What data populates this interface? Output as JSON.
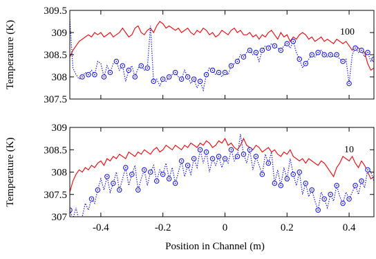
{
  "chart_data": [
    {
      "type": "line",
      "annotation": "100",
      "ylabel": "Temperature (K)",
      "xlim": [
        -0.5,
        0.48
      ],
      "ylim": [
        307.5,
        309.5
      ],
      "yticks": [
        "307.5",
        "308",
        "308.5",
        "309",
        "309.5"
      ],
      "ytick_values": [
        307.5,
        308,
        308.5,
        309,
        309.5
      ],
      "xticks": [
        "-0.4",
        "-0.2",
        "0",
        "0.2",
        "0.4"
      ],
      "xtick_values": [
        -0.4,
        -0.2,
        0,
        0.2,
        0.4
      ],
      "xtick_labels_shown": false,
      "colors": {
        "solid": "#e8141c",
        "dotted": "#1a1ad8"
      },
      "series": [
        {
          "style": "solid",
          "x": [
            -0.5,
            -0.49,
            -0.48,
            -0.47,
            -0.46,
            -0.45,
            -0.44,
            -0.43,
            -0.42,
            -0.41,
            -0.4,
            -0.39,
            -0.38,
            -0.37,
            -0.36,
            -0.35,
            -0.34,
            -0.33,
            -0.32,
            -0.31,
            -0.3,
            -0.29,
            -0.28,
            -0.27,
            -0.26,
            -0.25,
            -0.24,
            -0.23,
            -0.22,
            -0.21,
            -0.2,
            -0.19,
            -0.18,
            -0.17,
            -0.16,
            -0.15,
            -0.14,
            -0.13,
            -0.12,
            -0.11,
            -0.1,
            -0.09,
            -0.08,
            -0.07,
            -0.06,
            -0.05,
            -0.04,
            -0.03,
            -0.02,
            -0.01,
            0,
            0.01,
            0.02,
            0.03,
            0.04,
            0.05,
            0.06,
            0.07,
            0.08,
            0.09,
            0.1,
            0.11,
            0.12,
            0.13,
            0.14,
            0.15,
            0.16,
            0.17,
            0.18,
            0.19,
            0.2,
            0.21,
            0.22,
            0.23,
            0.24,
            0.25,
            0.26,
            0.27,
            0.28,
            0.29,
            0.3,
            0.31,
            0.32,
            0.33,
            0.34,
            0.35,
            0.36,
            0.37,
            0.38,
            0.39,
            0.4,
            0.41,
            0.42,
            0.43,
            0.44,
            0.45,
            0.46,
            0.47,
            0.48
          ],
          "y": [
            308.45,
            308.6,
            308.7,
            308.8,
            308.85,
            308.9,
            308.95,
            308.9,
            309.0,
            308.95,
            309.0,
            308.9,
            308.95,
            309.0,
            308.9,
            308.95,
            309.0,
            309.1,
            309.0,
            308.9,
            308.95,
            309.1,
            309.15,
            309.0,
            308.95,
            309.05,
            309.1,
            309.0,
            309.15,
            309.25,
            309.2,
            309.1,
            309.15,
            309.1,
            309.05,
            309.1,
            309.0,
            309.05,
            309.1,
            309.0,
            308.95,
            309.05,
            309.0,
            309.1,
            309.05,
            308.95,
            309.0,
            308.9,
            308.95,
            309.05,
            309.0,
            308.95,
            309.05,
            309.1,
            309.0,
            309.05,
            308.95,
            308.95,
            309.0,
            308.9,
            308.95,
            308.85,
            308.95,
            308.9,
            309.0,
            309.05,
            308.95,
            308.85,
            309.0,
            308.9,
            308.95,
            308.8,
            308.9,
            308.85,
            308.95,
            309.0,
            308.95,
            308.85,
            308.9,
            308.8,
            308.85,
            308.9,
            308.8,
            308.85,
            308.8,
            308.75,
            308.85,
            308.8,
            308.75,
            308.8,
            308.7,
            308.6,
            308.7,
            308.65,
            308.6,
            308.55,
            308.3,
            308.15,
            308.2
          ]
        },
        {
          "style": "dotted",
          "x": [
            -0.5,
            -0.49,
            -0.48,
            -0.47,
            -0.46,
            -0.45,
            -0.44,
            -0.43,
            -0.42,
            -0.41,
            -0.4,
            -0.39,
            -0.38,
            -0.37,
            -0.36,
            -0.35,
            -0.34,
            -0.33,
            -0.32,
            -0.31,
            -0.3,
            -0.29,
            -0.28,
            -0.27,
            -0.26,
            -0.25,
            -0.24,
            -0.23,
            -0.22,
            -0.21,
            -0.2,
            -0.19,
            -0.18,
            -0.17,
            -0.16,
            -0.15,
            -0.14,
            -0.13,
            -0.12,
            -0.11,
            -0.1,
            -0.09,
            -0.08,
            -0.07,
            -0.06,
            -0.05,
            -0.04,
            -0.03,
            -0.02,
            -0.01,
            0,
            0.01,
            0.02,
            0.03,
            0.04,
            0.05,
            0.06,
            0.07,
            0.08,
            0.09,
            0.1,
            0.11,
            0.12,
            0.13,
            0.14,
            0.15,
            0.16,
            0.17,
            0.18,
            0.19,
            0.2,
            0.21,
            0.22,
            0.23,
            0.24,
            0.25,
            0.26,
            0.27,
            0.28,
            0.29,
            0.3,
            0.31,
            0.32,
            0.33,
            0.34,
            0.35,
            0.36,
            0.37,
            0.38,
            0.39,
            0.4,
            0.41,
            0.42,
            0.43,
            0.44,
            0.45,
            0.46,
            0.47,
            0.48
          ],
          "y": [
            309.3,
            308.2,
            308.05,
            307.95,
            308.0,
            308.1,
            308.05,
            308.15,
            308.05,
            308.35,
            308.3,
            308.0,
            308.25,
            308.1,
            308.3,
            308.35,
            308.15,
            308.25,
            307.9,
            308.15,
            308.25,
            308.0,
            308.2,
            308.25,
            308.15,
            308.2,
            309.15,
            307.9,
            307.95,
            307.8,
            307.95,
            307.9,
            308.0,
            308.05,
            308.1,
            308.0,
            307.95,
            308.15,
            308.0,
            307.85,
            307.95,
            307.75,
            307.9,
            307.7,
            308.05,
            308.2,
            308.15,
            308.05,
            308.1,
            308.0,
            308.1,
            308.05,
            308.25,
            308.3,
            308.35,
            308.5,
            308.45,
            308.55,
            308.6,
            308.5,
            308.55,
            308.35,
            308.6,
            308.7,
            308.65,
            308.75,
            308.7,
            308.65,
            308.6,
            308.7,
            308.75,
            308.65,
            308.8,
            308.55,
            308.4,
            308.2,
            308.3,
            308.4,
            308.5,
            308.45,
            308.55,
            308.6,
            308.5,
            308.45,
            308.5,
            308.45,
            308.5,
            308.4,
            308.35,
            308.4,
            307.85,
            308.5,
            308.65,
            308.55,
            308.6,
            308.45,
            308.55,
            308.35,
            308.4
          ],
          "markers_x": [
            -0.46,
            -0.44,
            -0.42,
            -0.39,
            -0.37,
            -0.35,
            -0.33,
            -0.31,
            -0.29,
            -0.27,
            -0.25,
            -0.23,
            -0.2,
            -0.18,
            -0.16,
            -0.14,
            -0.12,
            -0.1,
            -0.08,
            -0.06,
            -0.04,
            -0.02,
            0.0,
            0.02,
            0.04,
            0.06,
            0.08,
            0.1,
            0.12,
            0.14,
            0.16,
            0.18,
            0.2,
            0.22,
            0.24,
            0.26,
            0.28,
            0.3,
            0.32,
            0.34,
            0.36,
            0.38,
            0.4,
            0.42,
            0.44,
            0.46,
            0.48
          ]
        }
      ]
    },
    {
      "type": "line",
      "annotation": "10",
      "ylabel": "Temperature (K)",
      "xlabel": "Position in Channel (m)",
      "xlim": [
        -0.5,
        0.48
      ],
      "ylim": [
        307,
        309
      ],
      "yticks": [
        "307",
        "307.5",
        "308",
        "308.5",
        "309"
      ],
      "ytick_values": [
        307,
        307.5,
        308,
        308.5,
        309
      ],
      "xticks": [
        "-0.4",
        "-0.2",
        "0",
        "0.2",
        "0.4"
      ],
      "xtick_values": [
        -0.4,
        -0.2,
        0,
        0.2,
        0.4
      ],
      "xtick_labels_shown": true,
      "colors": {
        "solid": "#e8141c",
        "dotted": "#1a1ad8"
      },
      "series": [
        {
          "style": "solid",
          "x": [
            -0.5,
            -0.49,
            -0.48,
            -0.47,
            -0.46,
            -0.45,
            -0.44,
            -0.43,
            -0.42,
            -0.41,
            -0.4,
            -0.39,
            -0.38,
            -0.37,
            -0.36,
            -0.35,
            -0.34,
            -0.33,
            -0.32,
            -0.31,
            -0.3,
            -0.29,
            -0.28,
            -0.27,
            -0.26,
            -0.25,
            -0.24,
            -0.23,
            -0.22,
            -0.21,
            -0.2,
            -0.19,
            -0.18,
            -0.17,
            -0.16,
            -0.15,
            -0.14,
            -0.13,
            -0.12,
            -0.11,
            -0.1,
            -0.09,
            -0.08,
            -0.07,
            -0.06,
            -0.05,
            -0.04,
            -0.03,
            -0.02,
            -0.01,
            0,
            0.01,
            0.02,
            0.03,
            0.04,
            0.05,
            0.06,
            0.07,
            0.08,
            0.09,
            0.1,
            0.11,
            0.12,
            0.13,
            0.14,
            0.15,
            0.16,
            0.17,
            0.18,
            0.19,
            0.2,
            0.21,
            0.22,
            0.23,
            0.24,
            0.25,
            0.26,
            0.27,
            0.28,
            0.29,
            0.3,
            0.31,
            0.32,
            0.33,
            0.34,
            0.35,
            0.36,
            0.37,
            0.38,
            0.39,
            0.4,
            0.41,
            0.42,
            0.43,
            0.44,
            0.45,
            0.46,
            0.47,
            0.48
          ],
          "y": [
            307.55,
            307.8,
            307.95,
            308.05,
            308.0,
            308.1,
            308.05,
            308.15,
            308.1,
            308.2,
            308.25,
            308.15,
            308.3,
            308.25,
            308.35,
            308.3,
            308.4,
            308.35,
            308.3,
            308.45,
            308.4,
            308.35,
            308.45,
            308.4,
            308.5,
            308.45,
            308.4,
            308.5,
            308.55,
            308.45,
            308.5,
            308.6,
            308.55,
            308.5,
            308.6,
            308.55,
            308.5,
            308.6,
            308.55,
            308.65,
            308.6,
            308.55,
            308.65,
            308.6,
            308.7,
            308.65,
            308.55,
            308.6,
            308.7,
            308.65,
            308.75,
            308.6,
            308.65,
            308.55,
            308.5,
            308.6,
            308.75,
            308.6,
            308.55,
            308.5,
            308.6,
            308.55,
            308.45,
            308.5,
            308.55,
            308.45,
            308.5,
            308.4,
            308.35,
            308.45,
            308.4,
            308.5,
            308.35,
            308.3,
            308.25,
            308.3,
            308.2,
            308.3,
            308.25,
            308.2,
            308.15,
            308.25,
            308.2,
            308.1,
            308.0,
            307.9,
            308.1,
            308.2,
            308.35,
            308.3,
            308.25,
            308.35,
            308.2,
            308.1,
            308.25,
            308.15,
            308.0,
            307.85,
            307.9
          ]
        },
        {
          "style": "dotted",
          "x": [
            -0.5,
            -0.49,
            -0.48,
            -0.47,
            -0.46,
            -0.45,
            -0.44,
            -0.43,
            -0.42,
            -0.41,
            -0.4,
            -0.39,
            -0.38,
            -0.37,
            -0.36,
            -0.35,
            -0.34,
            -0.33,
            -0.32,
            -0.31,
            -0.3,
            -0.29,
            -0.28,
            -0.27,
            -0.26,
            -0.25,
            -0.24,
            -0.23,
            -0.22,
            -0.21,
            -0.2,
            -0.19,
            -0.18,
            -0.17,
            -0.16,
            -0.15,
            -0.14,
            -0.13,
            -0.12,
            -0.11,
            -0.1,
            -0.09,
            -0.08,
            -0.07,
            -0.06,
            -0.05,
            -0.04,
            -0.03,
            -0.02,
            -0.01,
            0,
            0.01,
            0.02,
            0.03,
            0.04,
            0.05,
            0.06,
            0.07,
            0.08,
            0.09,
            0.1,
            0.11,
            0.12,
            0.13,
            0.14,
            0.15,
            0.16,
            0.17,
            0.18,
            0.19,
            0.2,
            0.21,
            0.22,
            0.23,
            0.24,
            0.25,
            0.26,
            0.27,
            0.28,
            0.29,
            0.3,
            0.31,
            0.32,
            0.33,
            0.34,
            0.35,
            0.36,
            0.37,
            0.38,
            0.39,
            0.4,
            0.41,
            0.42,
            0.43,
            0.44,
            0.45,
            0.46,
            0.47,
            0.48
          ],
          "y": [
            307.15,
            306.95,
            307.2,
            306.9,
            307.0,
            307.3,
            307.15,
            307.4,
            307.3,
            307.6,
            307.85,
            307.6,
            307.9,
            307.55,
            307.75,
            308.0,
            307.6,
            307.85,
            308.1,
            307.7,
            307.95,
            308.15,
            307.6,
            307.85,
            308.05,
            307.7,
            308.0,
            308.15,
            307.8,
            308.05,
            307.95,
            308.2,
            307.85,
            308.1,
            307.75,
            308.0,
            308.25,
            307.9,
            308.15,
            307.95,
            308.3,
            308.1,
            308.5,
            308.2,
            308.45,
            308.0,
            308.3,
            308.15,
            308.35,
            308.1,
            308.3,
            308.2,
            308.5,
            308.25,
            308.35,
            308.85,
            308.4,
            308.2,
            308.5,
            308.05,
            308.35,
            308.15,
            307.95,
            308.4,
            308.2,
            308.45,
            307.75,
            308.05,
            307.7,
            308.1,
            307.85,
            308.3,
            307.95,
            307.7,
            308.0,
            307.5,
            307.75,
            307.45,
            307.6,
            307.35,
            307.15,
            307.55,
            307.4,
            307.2,
            307.5,
            307.35,
            307.7,
            307.45,
            307.3,
            307.55,
            307.4,
            307.55,
            307.7,
            307.5,
            307.8,
            307.65,
            308.05,
            308.0,
            307.8
          ],
          "markers_x": [
            -0.5,
            -0.43,
            -0.41,
            -0.38,
            -0.36,
            -0.34,
            -0.32,
            -0.3,
            -0.28,
            -0.26,
            -0.24,
            -0.22,
            -0.2,
            -0.18,
            -0.16,
            -0.14,
            -0.12,
            -0.1,
            -0.08,
            -0.06,
            -0.04,
            -0.02,
            0.0,
            0.02,
            0.04,
            0.06,
            0.08,
            0.1,
            0.12,
            0.14,
            0.16,
            0.18,
            0.2,
            0.22,
            0.24,
            0.26,
            0.28,
            0.3,
            0.32,
            0.34,
            0.36,
            0.38,
            0.4,
            0.42,
            0.44,
            0.46
          ]
        }
      ]
    }
  ]
}
